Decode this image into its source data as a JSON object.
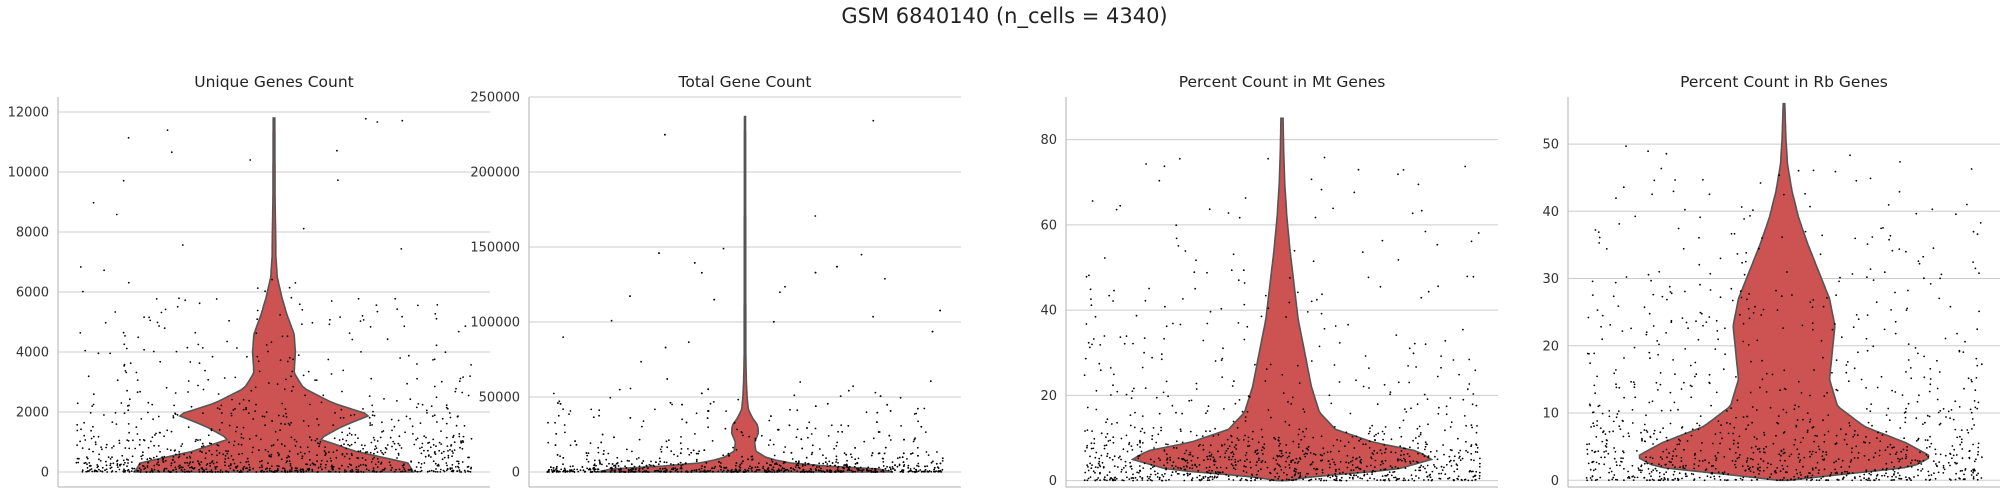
{
  "title": "GSM 6840140 (n_cells = 4340)",
  "colors": {
    "violin": "#cd5352",
    "violin_edge": "#555555",
    "points": "#000000",
    "grid": "#cccccc"
  },
  "chart_data": [
    {
      "type": "violin",
      "title": "Unique Genes Count",
      "ylim": [
        -500,
        12500
      ],
      "yticks": [
        0,
        2000,
        4000,
        6000,
        8000,
        10000,
        12000
      ],
      "ytick_labels": [
        "0",
        "2000",
        "4000",
        "6000",
        "8000",
        "10000",
        "12000"
      ],
      "grid": true,
      "point_density": [
        [
          0,
          0.28
        ],
        [
          600,
          0.2
        ],
        [
          1500,
          0.12
        ],
        [
          2100,
          0.1
        ],
        [
          2600,
          0.06
        ],
        [
          4000,
          0.05
        ],
        [
          5600,
          0.04
        ],
        [
          6500,
          0.006
        ],
        [
          12000,
          0.003
        ]
      ],
      "violin_profile": [
        [
          0,
          0.52
        ],
        [
          300,
          0.5
        ],
        [
          700,
          0.3
        ],
        [
          1100,
          0.17
        ],
        [
          1500,
          0.25
        ],
        [
          1900,
          0.36
        ],
        [
          2300,
          0.22
        ],
        [
          2800,
          0.11
        ],
        [
          3300,
          0.075
        ],
        [
          4000,
          0.08
        ],
        [
          4600,
          0.075
        ],
        [
          5200,
          0.05
        ],
        [
          5800,
          0.03
        ],
        [
          6500,
          0.012
        ],
        [
          7200,
          0.007
        ],
        [
          8000,
          0.006
        ],
        [
          9000,
          0.004
        ],
        [
          11800,
          0.003
        ]
      ],
      "max": 11800
    },
    {
      "type": "violin",
      "title": "Total Gene Count",
      "ylim": [
        -10000,
        250000
      ],
      "yticks": [
        0,
        50000,
        100000,
        150000,
        200000,
        250000
      ],
      "ytick_labels": [
        "0",
        "50000",
        "100000",
        "150000",
        "200000",
        "250000"
      ],
      "grid": true,
      "point_density": [
        [
          0,
          0.5
        ],
        [
          2000,
          0.45
        ],
        [
          5000,
          0.25
        ],
        [
          10000,
          0.12
        ],
        [
          20000,
          0.08
        ],
        [
          35000,
          0.06
        ],
        [
          50000,
          0.04
        ],
        [
          70000,
          0.008
        ],
        [
          240000,
          0.002
        ]
      ],
      "violin_profile": [
        [
          0,
          0.55
        ],
        [
          2000,
          0.5
        ],
        [
          5000,
          0.2
        ],
        [
          9000,
          0.085
        ],
        [
          14000,
          0.04
        ],
        [
          20000,
          0.036
        ],
        [
          26000,
          0.05
        ],
        [
          31000,
          0.048
        ],
        [
          36000,
          0.028
        ],
        [
          42000,
          0.012
        ],
        [
          50000,
          0.008
        ],
        [
          60000,
          0.005
        ],
        [
          80000,
          0.003
        ],
        [
          237000,
          0.002
        ]
      ],
      "max": 237000
    },
    {
      "type": "violin",
      "title": "Percent Count in Mt Genes",
      "ylim": [
        -1.5,
        90
      ],
      "yticks": [
        0,
        20,
        40,
        60,
        80
      ],
      "ytick_labels": [
        "0",
        "20",
        "40",
        "60",
        "80"
      ],
      "grid": true,
      "point_density": [
        [
          0,
          0.35
        ],
        [
          3,
          0.45
        ],
        [
          6,
          0.5
        ],
        [
          10,
          0.3
        ],
        [
          15,
          0.12
        ],
        [
          25,
          0.08
        ],
        [
          45,
          0.06
        ],
        [
          60,
          0.04
        ],
        [
          80,
          0.01
        ],
        [
          85,
          0.005
        ]
      ],
      "violin_profile": [
        [
          0,
          0.02
        ],
        [
          1,
          0.12
        ],
        [
          2.5,
          0.42
        ],
        [
          5,
          0.56
        ],
        [
          7,
          0.5
        ],
        [
          9,
          0.34
        ],
        [
          12,
          0.2
        ],
        [
          16,
          0.14
        ],
        [
          22,
          0.11
        ],
        [
          30,
          0.085
        ],
        [
          38,
          0.06
        ],
        [
          46,
          0.045
        ],
        [
          54,
          0.03
        ],
        [
          62,
          0.018
        ],
        [
          70,
          0.01
        ],
        [
          78,
          0.006
        ],
        [
          85,
          0.004
        ]
      ],
      "max": 85
    },
    {
      "type": "violin",
      "title": "Percent Count in Rb Genes",
      "ylim": [
        -1,
        57
      ],
      "yticks": [
        0,
        10,
        20,
        30,
        40,
        50
      ],
      "ytick_labels": [
        "0",
        "10",
        "20",
        "30",
        "40",
        "50"
      ],
      "grid": true,
      "point_density": [
        [
          0,
          0.3
        ],
        [
          2,
          0.5
        ],
        [
          4,
          0.45
        ],
        [
          8,
          0.25
        ],
        [
          15,
          0.15
        ],
        [
          25,
          0.14
        ],
        [
          35,
          0.1
        ],
        [
          42,
          0.06
        ],
        [
          50,
          0.01
        ],
        [
          56,
          0.003
        ]
      ],
      "violin_profile": [
        [
          0,
          0.02
        ],
        [
          0.8,
          0.2
        ],
        [
          2,
          0.48
        ],
        [
          3.5,
          0.55
        ],
        [
          5.5,
          0.46
        ],
        [
          8,
          0.3
        ],
        [
          11,
          0.2
        ],
        [
          15,
          0.17
        ],
        [
          19,
          0.18
        ],
        [
          23,
          0.19
        ],
        [
          27,
          0.17
        ],
        [
          31,
          0.13
        ],
        [
          35,
          0.09
        ],
        [
          39,
          0.055
        ],
        [
          43,
          0.03
        ],
        [
          47,
          0.013
        ],
        [
          51,
          0.007
        ],
        [
          56,
          0.003
        ]
      ],
      "max": 56
    }
  ]
}
